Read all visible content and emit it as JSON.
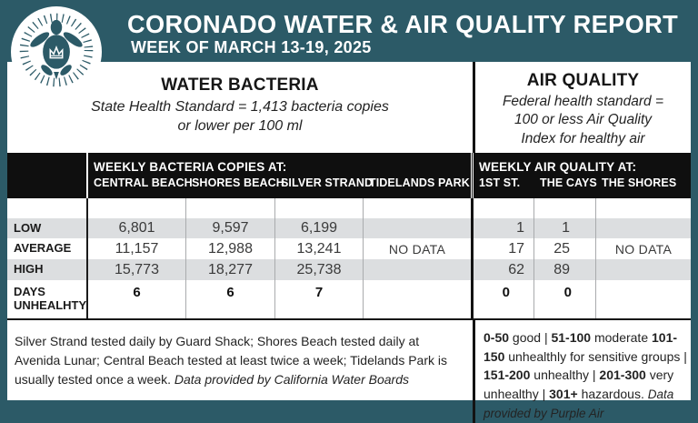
{
  "colors": {
    "teal": "#2c5a67",
    "header_band_black": "#0f0f0f",
    "row_stripe_gray": "#dcdee0",
    "panel_white": "#ffffff"
  },
  "header": {
    "title": "CORONADO WATER & AIR QUALITY REPORT",
    "subtitle": "WEEK OF MARCH 13-19, 2025",
    "logo_icon": "turtle-crown-icon"
  },
  "sections": {
    "water": {
      "heading": "WATER BACTERIA",
      "standard": "State Health Standard  = 1,413 bacteria copies\nor lower per 100 ml"
    },
    "air": {
      "heading": "AIR QUALITY",
      "standard": "Federal health standard =\n100 or less Air Quality\nIndex for healthy air"
    }
  },
  "table": {
    "water_group_label": "WEEKLY BACTERIA COPIES AT:",
    "air_group_label": "WEEKLY AIR QUALITY AT:",
    "water_columns": [
      "CENTRAL BEACH",
      "SHORES BEACH",
      "SILVER STRAND",
      "TIDELANDS PARK"
    ],
    "air_columns": [
      "1ST ST.",
      "THE CAYS",
      "THE SHORES"
    ],
    "rows": [
      {
        "label": "LOW",
        "water": [
          "6,801",
          "9,597",
          "6,199"
        ],
        "air": [
          "1",
          "1"
        ]
      },
      {
        "label": "AVERAGE",
        "water": [
          "11,157",
          "12,988",
          "13,241"
        ],
        "air": [
          "17",
          "25"
        ]
      },
      {
        "label": "HIGH",
        "water": [
          "15,773",
          "18,277",
          "25,738"
        ],
        "air": [
          "62",
          "89"
        ]
      },
      {
        "label": "DAYS\nUNHEALHTY",
        "water": [
          "6",
          "6",
          "7"
        ],
        "air": [
          "0",
          "0"
        ]
      }
    ],
    "tidelands_value": "NO DATA",
    "shores_value": "NO DATA"
  },
  "footer": {
    "water_note": "Silver Strand tested daily by Guard Shack; Shores Beach tested daily at Avenida Lunar; Central Beach tested at least twice a week; Tidelands Park is usually tested once a week.",
    "water_credit": "Data provided by California Water Boards",
    "aqi_segments": [
      {
        "text": "0-50",
        "bold": true
      },
      {
        "text": " good | ",
        "bold": false
      },
      {
        "text": "51-100",
        "bold": true
      },
      {
        "text": " moderate ",
        "bold": false
      },
      {
        "text": "101-150",
        "bold": true
      },
      {
        "text": " unhealthly for sensitive groups | ",
        "bold": false
      },
      {
        "text": "151-200",
        "bold": true
      },
      {
        "text": " unhealthy | ",
        "bold": false
      },
      {
        "text": "201-300",
        "bold": true
      },
      {
        "text": " very unhealthy | ",
        "bold": false
      },
      {
        "text": "301+",
        "bold": true
      },
      {
        "text": " hazardous. ",
        "bold": false
      }
    ],
    "air_credit": "Data provided by Purple Air"
  }
}
